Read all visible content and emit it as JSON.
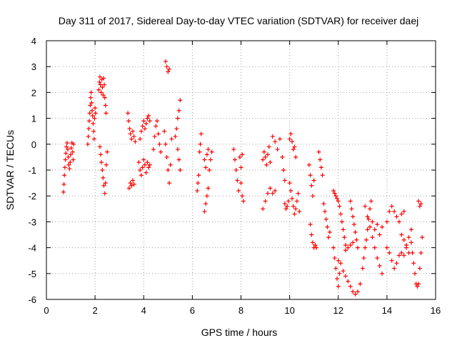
{
  "chart_data": {
    "type": "scatter",
    "title": "Day 311 of 2017, Sidereal Day-to-day VTEC variation (SDTVAR) for receiver daej",
    "xlabel": "GPS time / hours",
    "ylabel": "SDTVAR / TECUs",
    "xlim": [
      0,
      16
    ],
    "ylim": [
      -6,
      4
    ],
    "xticks": [
      0,
      2,
      4,
      6,
      8,
      10,
      12,
      14,
      16
    ],
    "yticks": [
      -6,
      -5,
      -4,
      -3,
      -2,
      -1,
      0,
      1,
      2,
      3,
      4
    ],
    "grid": true,
    "marker": "+",
    "color": "#ff0000",
    "series": [
      {
        "name": "daej",
        "points": [
          [
            0.7,
            -1.85
          ],
          [
            0.72,
            -1.55
          ],
          [
            0.74,
            -1.2
          ],
          [
            0.76,
            -0.9
          ],
          [
            0.78,
            -0.6
          ],
          [
            0.8,
            -0.35
          ],
          [
            0.82,
            -0.1
          ],
          [
            0.85,
            0.05
          ],
          [
            0.88,
            -0.2
          ],
          [
            0.9,
            -0.5
          ],
          [
            0.92,
            -0.8
          ],
          [
            0.95,
            -0.95
          ],
          [
            0.98,
            -0.7
          ],
          [
            1.0,
            -0.4
          ],
          [
            1.02,
            -0.15
          ],
          [
            1.05,
            0.05
          ],
          [
            1.08,
            -0.3
          ],
          [
            1.1,
            -0.6
          ],
          [
            1.12,
            0.0
          ],
          [
            1.7,
            0.0
          ],
          [
            1.72,
            0.3
          ],
          [
            1.74,
            0.6
          ],
          [
            1.76,
            0.9
          ],
          [
            1.78,
            1.2
          ],
          [
            1.8,
            1.5
          ],
          [
            1.82,
            1.8
          ],
          [
            1.84,
            2.0
          ],
          [
            1.86,
            1.6
          ],
          [
            1.88,
            1.3
          ],
          [
            1.9,
            1.1
          ],
          [
            1.92,
            0.8
          ],
          [
            1.94,
            0.5
          ],
          [
            1.96,
            0.2
          ],
          [
            1.98,
            1.0
          ],
          [
            2.0,
            1.4
          ],
          [
            2.02,
            1.2
          ],
          [
            2.15,
            2.1
          ],
          [
            2.18,
            2.4
          ],
          [
            2.2,
            2.6
          ],
          [
            2.22,
            2.3
          ],
          [
            2.25,
            2.0
          ],
          [
            2.28,
            2.5
          ],
          [
            2.3,
            2.2
          ],
          [
            2.33,
            1.9
          ],
          [
            2.35,
            2.55
          ],
          [
            2.38,
            2.3
          ],
          [
            2.4,
            1.8
          ],
          [
            2.43,
            1.5
          ],
          [
            2.45,
            1.2
          ],
          [
            2.2,
            -0.1
          ],
          [
            2.23,
            -0.4
          ],
          [
            2.26,
            -0.7
          ],
          [
            2.3,
            -1.0
          ],
          [
            2.33,
            -1.3
          ],
          [
            2.36,
            -1.6
          ],
          [
            2.4,
            -1.9
          ],
          [
            2.43,
            -1.5
          ],
          [
            2.46,
            -0.8
          ],
          [
            2.5,
            -0.3
          ],
          [
            3.4,
            -1.7
          ],
          [
            3.45,
            -1.5
          ],
          [
            3.5,
            -1.6
          ],
          [
            3.55,
            -1.4
          ],
          [
            3.6,
            -1.55
          ],
          [
            3.35,
            1.2
          ],
          [
            3.38,
            0.9
          ],
          [
            3.42,
            0.6
          ],
          [
            3.45,
            0.4
          ],
          [
            3.5,
            0.2
          ],
          [
            3.55,
            0.5
          ],
          [
            3.6,
            0.3
          ],
          [
            3.65,
            0.1
          ],
          [
            3.8,
            -0.7
          ],
          [
            3.85,
            -1.0
          ],
          [
            3.9,
            -1.2
          ],
          [
            3.95,
            -0.9
          ],
          [
            4.0,
            -0.6
          ],
          [
            4.05,
            -0.8
          ],
          [
            4.1,
            -1.1
          ],
          [
            4.15,
            -0.7
          ],
          [
            4.2,
            -0.9
          ],
          [
            4.25,
            -0.8
          ],
          [
            3.85,
            0.2
          ],
          [
            3.9,
            0.5
          ],
          [
            3.95,
            0.7
          ],
          [
            4.0,
            0.9
          ],
          [
            4.05,
            0.6
          ],
          [
            4.1,
            0.8
          ],
          [
            4.15,
            1.0
          ],
          [
            4.2,
            1.1
          ],
          [
            4.25,
            0.9
          ],
          [
            4.4,
            -0.2
          ],
          [
            4.45,
            0.3
          ],
          [
            4.5,
            0.7
          ],
          [
            4.55,
            0.9
          ],
          [
            4.6,
            0.4
          ],
          [
            4.65,
            0.0
          ],
          [
            4.7,
            -0.3
          ],
          [
            4.9,
            3.2
          ],
          [
            4.95,
            3.0
          ],
          [
            5.0,
            2.8
          ],
          [
            5.05,
            2.9
          ],
          [
            4.85,
            0.5
          ],
          [
            4.9,
            0.0
          ],
          [
            4.95,
            -0.5
          ],
          [
            5.0,
            -1.0
          ],
          [
            5.05,
            -1.5
          ],
          [
            5.1,
            -0.8
          ],
          [
            5.15,
            0.2
          ],
          [
            5.3,
            0.3
          ],
          [
            5.35,
            0.6
          ],
          [
            5.4,
            1.0
          ],
          [
            5.45,
            1.3
          ],
          [
            5.5,
            1.7
          ],
          [
            5.4,
            -0.2
          ],
          [
            5.45,
            -0.6
          ],
          [
            5.5,
            -1.0
          ],
          [
            6.2,
            -1.8
          ],
          [
            6.23,
            -1.5
          ],
          [
            6.26,
            -1.2
          ],
          [
            6.3,
            -0.3
          ],
          [
            6.33,
            0.0
          ],
          [
            6.36,
            0.4
          ],
          [
            6.5,
            -2.6
          ],
          [
            6.55,
            -2.3
          ],
          [
            6.6,
            -2.0
          ],
          [
            6.65,
            -1.7
          ],
          [
            6.5,
            -0.6
          ],
          [
            6.55,
            -0.9
          ],
          [
            6.6,
            -0.4
          ],
          [
            6.65,
            -0.2
          ],
          [
            6.7,
            -1.0
          ],
          [
            6.75,
            -0.6
          ],
          [
            6.8,
            -0.3
          ],
          [
            7.7,
            -0.2
          ],
          [
            7.75,
            -0.6
          ],
          [
            7.8,
            -1.0
          ],
          [
            7.85,
            -1.4
          ],
          [
            7.9,
            -1.8
          ],
          [
            7.95,
            -0.5
          ],
          [
            8.0,
            -0.9
          ],
          [
            8.05,
            -0.4
          ],
          [
            8.1,
            -2.2
          ],
          [
            8.05,
            -2.0
          ],
          [
            8.0,
            -1.5
          ],
          [
            8.9,
            -2.5
          ],
          [
            9.0,
            -2.2
          ],
          [
            9.1,
            -1.9
          ],
          [
            9.2,
            -1.7
          ],
          [
            9.3,
            -1.9
          ],
          [
            9.4,
            -1.8
          ],
          [
            8.9,
            -0.6
          ],
          [
            8.95,
            -0.3
          ],
          [
            9.0,
            -0.5
          ],
          [
            9.05,
            -0.8
          ],
          [
            9.1,
            -0.4
          ],
          [
            9.15,
            -0.1
          ],
          [
            9.2,
            -0.7
          ],
          [
            9.3,
            0.3
          ],
          [
            9.4,
            0.1
          ],
          [
            9.5,
            -0.2
          ],
          [
            9.6,
            0.2
          ],
          [
            9.7,
            -0.5
          ],
          [
            9.75,
            -1.0
          ],
          [
            9.8,
            -1.4
          ],
          [
            9.8,
            -2.3
          ],
          [
            9.85,
            -2.5
          ],
          [
            9.9,
            -2.4
          ],
          [
            9.95,
            -2.2
          ],
          [
            10.0,
            0.2
          ],
          [
            10.05,
            0.4
          ],
          [
            10.1,
            0.1
          ],
          [
            10.15,
            -0.2
          ],
          [
            10.2,
            -0.1
          ],
          [
            10.25,
            -0.5
          ],
          [
            10.0,
            -1.5
          ],
          [
            10.05,
            -1.8
          ],
          [
            10.1,
            -2.1
          ],
          [
            10.15,
            -2.4
          ],
          [
            10.2,
            -2.7
          ],
          [
            10.25,
            -2.5
          ],
          [
            10.3,
            -2.2
          ],
          [
            10.35,
            -1.9
          ],
          [
            10.4,
            -2.6
          ],
          [
            10.8,
            -0.8
          ],
          [
            10.85,
            -1.2
          ],
          [
            10.9,
            -1.6
          ],
          [
            10.95,
            -2.0
          ],
          [
            11.0,
            -1.4
          ],
          [
            10.85,
            -3.1
          ],
          [
            10.9,
            -3.5
          ],
          [
            10.95,
            -3.8
          ],
          [
            11.0,
            -4.0
          ],
          [
            11.05,
            -3.9
          ],
          [
            11.1,
            -4.0
          ],
          [
            11.2,
            -0.3
          ],
          [
            11.25,
            -0.6
          ],
          [
            11.3,
            -0.9
          ],
          [
            11.35,
            -1.2
          ],
          [
            11.4,
            -2.3
          ],
          [
            11.45,
            -2.6
          ],
          [
            11.5,
            -2.9
          ],
          [
            11.55,
            -3.2
          ],
          [
            11.6,
            -3.6
          ],
          [
            11.65,
            -3.4
          ],
          [
            11.8,
            -4.0
          ],
          [
            11.85,
            -4.4
          ],
          [
            11.9,
            -4.8
          ],
          [
            11.95,
            -5.2
          ],
          [
            12.0,
            -5.5
          ],
          [
            12.05,
            -5.0
          ],
          [
            11.8,
            -1.8
          ],
          [
            11.85,
            -1.9
          ],
          [
            11.9,
            -2.0
          ],
          [
            11.95,
            -2.1
          ],
          [
            12.0,
            -2.2
          ],
          [
            12.05,
            -2.4
          ],
          [
            12.1,
            -2.7
          ],
          [
            12.15,
            -3.0
          ],
          [
            12.2,
            -3.3
          ],
          [
            12.25,
            -3.6
          ],
          [
            12.3,
            -3.9
          ],
          [
            12.0,
            -4.5
          ],
          [
            12.1,
            -4.6
          ],
          [
            12.2,
            -4.9
          ],
          [
            12.3,
            -5.1
          ],
          [
            12.4,
            -5.3
          ],
          [
            12.5,
            -5.5
          ],
          [
            12.6,
            -5.7
          ],
          [
            12.7,
            -5.8
          ],
          [
            12.8,
            -5.7
          ],
          [
            12.9,
            -5.4
          ],
          [
            12.3,
            -4.1
          ],
          [
            12.4,
            -4.0
          ],
          [
            12.5,
            -3.9
          ],
          [
            12.6,
            -3.8
          ],
          [
            12.5,
            -2.2
          ],
          [
            12.55,
            -2.5
          ],
          [
            12.6,
            -2.8
          ],
          [
            12.65,
            -3.1
          ],
          [
            12.7,
            -3.4
          ],
          [
            12.75,
            -3.7
          ],
          [
            12.8,
            -4.0
          ],
          [
            13.0,
            -4.8
          ],
          [
            13.05,
            -4.4
          ],
          [
            13.1,
            -4.0
          ],
          [
            13.15,
            -3.7
          ],
          [
            13.2,
            -3.3
          ],
          [
            13.25,
            -2.9
          ],
          [
            13.3,
            -2.5
          ],
          [
            13.35,
            -2.2
          ],
          [
            13.1,
            -2.4
          ],
          [
            13.2,
            -2.8
          ],
          [
            13.3,
            -3.2
          ],
          [
            13.4,
            -3.6
          ],
          [
            13.5,
            -4.0
          ],
          [
            13.6,
            -4.4
          ],
          [
            13.7,
            -4.7
          ],
          [
            13.8,
            -5.0
          ],
          [
            13.4,
            -3.0
          ],
          [
            13.5,
            -3.3
          ],
          [
            13.6,
            -3.1
          ],
          [
            13.7,
            -3.5
          ],
          [
            13.8,
            -3.2
          ],
          [
            14.0,
            -3.0
          ],
          [
            14.1,
            -2.6
          ],
          [
            14.2,
            -2.4
          ],
          [
            14.3,
            -2.6
          ],
          [
            14.4,
            -2.8
          ],
          [
            14.5,
            -3.0
          ],
          [
            14.6,
            -2.7
          ],
          [
            14.7,
            -2.6
          ],
          [
            14.0,
            -4.0
          ],
          [
            14.1,
            -4.2
          ],
          [
            14.2,
            -4.5
          ],
          [
            14.3,
            -4.8
          ],
          [
            14.4,
            -4.6
          ],
          [
            14.5,
            -4.3
          ],
          [
            14.6,
            -4.2
          ],
          [
            14.7,
            -4.3
          ],
          [
            14.8,
            -4.0
          ],
          [
            14.9,
            -4.2
          ],
          [
            14.6,
            -3.5
          ],
          [
            14.7,
            -3.7
          ],
          [
            14.8,
            -3.9
          ],
          [
            14.9,
            -3.6
          ],
          [
            15.0,
            -3.3
          ],
          [
            15.0,
            -3.8
          ],
          [
            15.05,
            -4.2
          ],
          [
            15.1,
            -4.6
          ],
          [
            15.15,
            -5.0
          ],
          [
            15.2,
            -5.4
          ],
          [
            15.25,
            -5.5
          ],
          [
            15.3,
            -5.4
          ],
          [
            15.35,
            -4.8
          ],
          [
            15.4,
            -4.2
          ],
          [
            15.45,
            -3.6
          ],
          [
            15.3,
            -2.2
          ],
          [
            15.35,
            -2.4
          ],
          [
            15.4,
            -2.3
          ]
        ]
      }
    ]
  }
}
